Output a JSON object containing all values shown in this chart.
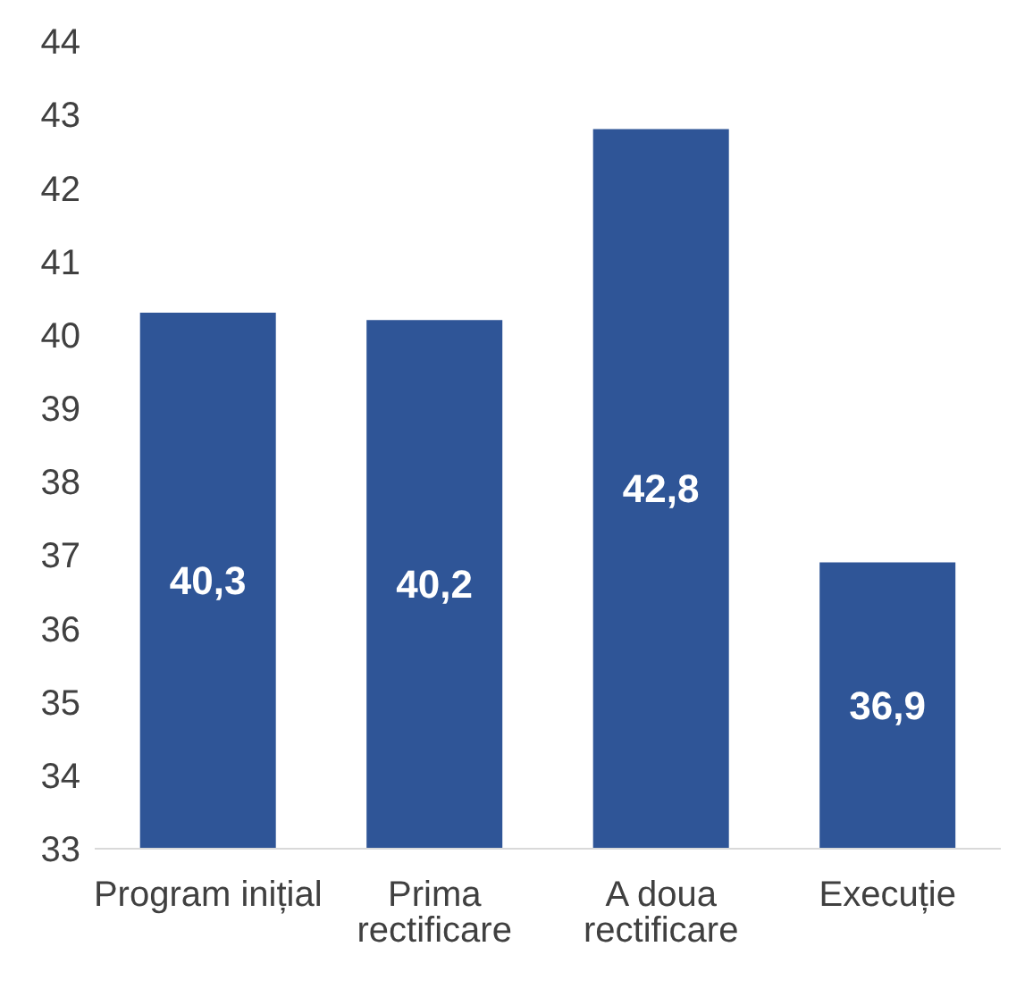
{
  "chart_data": {
    "type": "bar",
    "categories": [
      "Program inițial",
      "Prima rectificare",
      "A doua rectificare",
      "Execuție"
    ],
    "values": [
      40.3,
      40.2,
      42.8,
      36.9
    ],
    "color": "#2f5597",
    "value_labels": [
      "40,3",
      "40,2",
      "42,8",
      "36,9"
    ],
    "ylim": [
      33,
      44
    ],
    "yticks": [
      33,
      34,
      35,
      36,
      37,
      38,
      39,
      40,
      41,
      42,
      43,
      44
    ],
    "grid": false,
    "legend": false
  }
}
